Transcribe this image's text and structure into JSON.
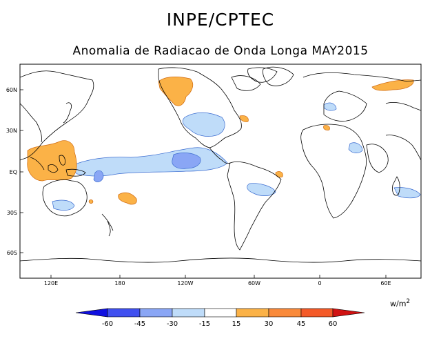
{
  "header": {
    "title": "INPE/CPTEC",
    "subtitle": "Anomalia de Radiacao de Onda Longa MAY2015"
  },
  "map": {
    "lon_labels": [
      "120E",
      "180",
      "120W",
      "60W",
      "0",
      "60E"
    ],
    "lat_labels": [
      "60N",
      "30N",
      "EQ",
      "30S",
      "60S"
    ]
  },
  "legend": {
    "units_base": "w/m",
    "units_exp": "2",
    "bounds": [
      "-60",
      "-45",
      "-30",
      "-15",
      "15",
      "30",
      "45",
      "60"
    ],
    "colors": [
      "#1010e0",
      "#4050f0",
      "#8aa6f5",
      "#bfdcf9",
      "#ffffff",
      "#fbb247",
      "#f98a3b",
      "#f45a28",
      "#d01212"
    ]
  }
}
